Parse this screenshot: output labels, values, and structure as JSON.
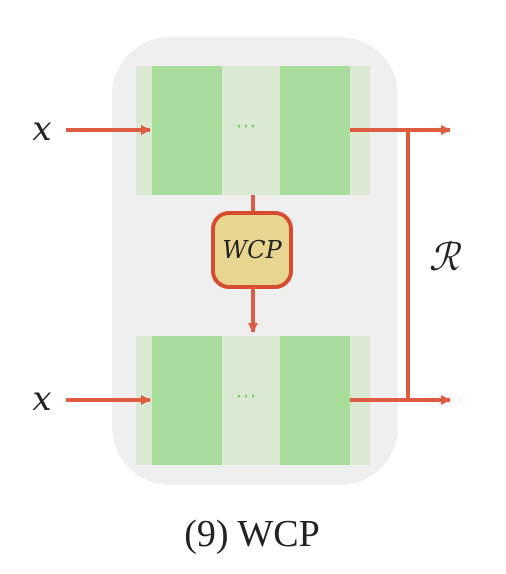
{
  "diagram": {
    "inputs": {
      "top_label": "x",
      "bottom_label": "x"
    },
    "top_block": {
      "ellipsis": "···"
    },
    "bottom_block": {
      "ellipsis": "···"
    },
    "module": {
      "label": "WCP"
    },
    "right_bracket": {
      "label": "ℛ"
    },
    "caption": "(9) WCP"
  },
  "colors": {
    "container_bg": "#efefef",
    "band_light": "#dbe8d4",
    "bar_green": "#a9dd9c",
    "dots": "#7fcf72",
    "arrow": "#dd5c42",
    "module_fill": "#e8d690",
    "module_stroke": "#d64c2e",
    "text": "#222222"
  }
}
